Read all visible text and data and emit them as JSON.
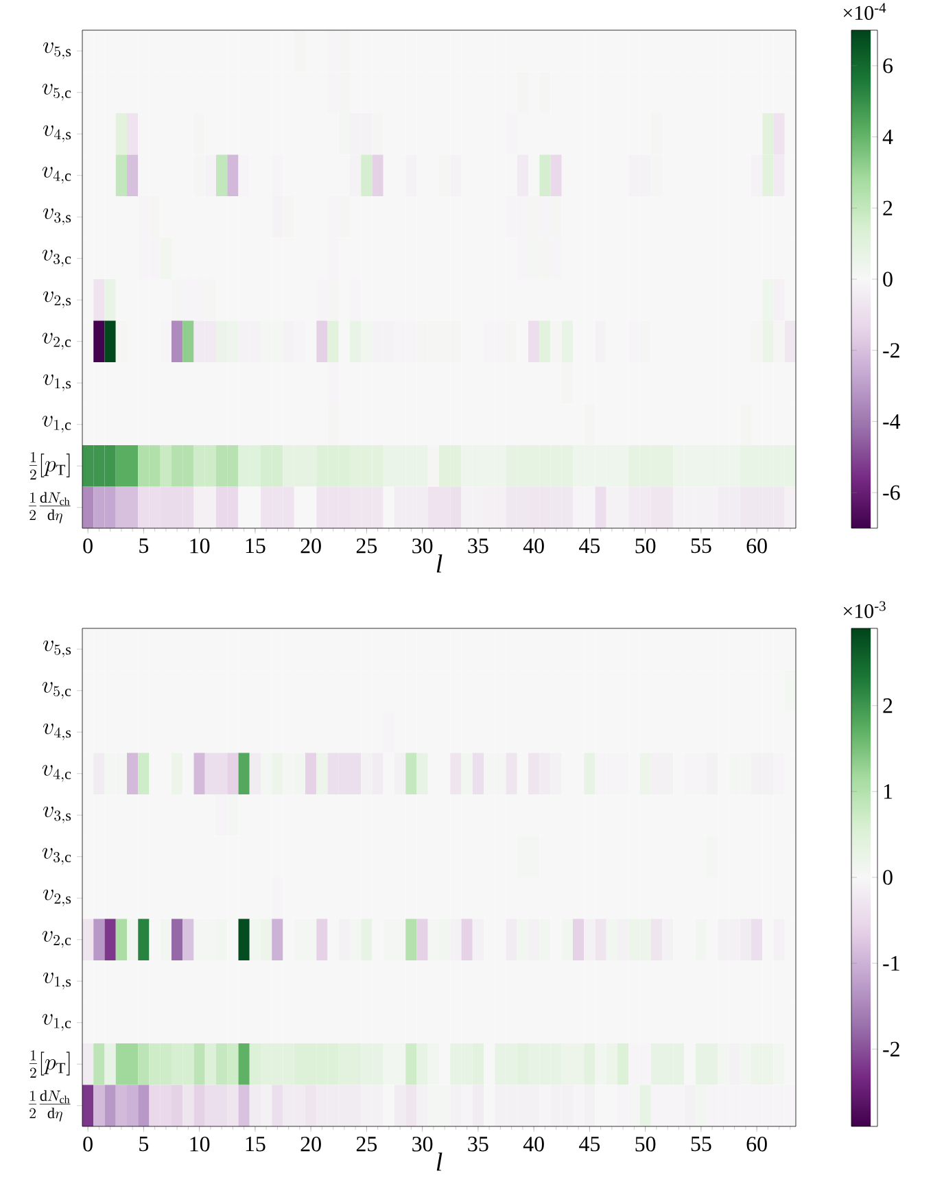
{
  "chart_data": [
    {
      "type": "heatmap",
      "xlabel": "l",
      "clabel": "×10$^{-4}$",
      "clim": [
        -7,
        7
      ],
      "cticks": [
        -6,
        -4,
        -2,
        0,
        2,
        4,
        6
      ],
      "categories": [
        "0",
        null,
        null,
        null,
        null,
        "5",
        null,
        null,
        null,
        null,
        "10",
        null,
        null,
        null,
        null,
        "15",
        null,
        null,
        null,
        null,
        "20",
        null,
        null,
        null,
        null,
        "25",
        null,
        null,
        null,
        null,
        "30",
        null,
        null,
        null,
        null,
        "35",
        null,
        null,
        null,
        null,
        "40",
        null,
        null,
        null,
        null,
        "45",
        null,
        null,
        null,
        null,
        "50",
        null,
        null,
        null,
        null,
        "55",
        null,
        null,
        null,
        null,
        "60",
        null,
        null,
        null
      ],
      "y_categories": [
        "v_{5,\\mathrm{s}}",
        "v_{5,\\mathrm{c}}",
        "v_{4,\\mathrm{s}}",
        "v_{4,\\mathrm{c}}",
        "v_{3,\\mathrm{s}}",
        "v_{3,\\mathrm{c}}",
        "v_{2,\\mathrm{s}}",
        "v_{2,\\mathrm{c}}",
        "v_{1,\\mathrm{s}}",
        "v_{1,\\mathrm{c}}",
        "\\frac{1}{2}[p_\\mathrm{T}]",
        "\\frac{1}{2}\\frac{\\mathrm{d}N_\\mathrm{ch}}{\\mathrm{d}\\eta}"
      ],
      "cells": [
        [
          0,
          0,
          0,
          0,
          0,
          0,
          0,
          0,
          0,
          0,
          0,
          0,
          0,
          0,
          0,
          0,
          0,
          0,
          0,
          0.1,
          0,
          0,
          -0.1,
          0.1,
          0,
          0,
          0,
          0,
          0,
          0,
          0,
          0,
          0,
          0,
          0,
          0,
          0,
          0,
          0,
          0,
          0,
          0,
          0,
          0,
          0,
          0,
          0,
          0,
          0,
          0,
          0,
          0,
          0,
          0,
          0,
          0,
          0,
          0,
          0,
          0,
          0,
          0,
          0,
          0
        ],
        [
          0,
          0,
          0,
          0,
          0,
          0,
          0,
          0,
          0,
          0,
          0,
          0,
          0,
          0,
          0,
          0,
          0,
          0,
          0,
          0,
          0,
          0,
          -0.1,
          0.1,
          0,
          0,
          0,
          0,
          0,
          0,
          0,
          0,
          0,
          0,
          0,
          0,
          0,
          0,
          0,
          0.1,
          0,
          0.1,
          0,
          0,
          0,
          0,
          0,
          0,
          0,
          0,
          0,
          0,
          0,
          0,
          0,
          0,
          0,
          0,
          0,
          0,
          0,
          0,
          0,
          0
        ],
        [
          0,
          0,
          0,
          1.0,
          -0.8,
          0,
          0,
          0,
          0,
          0,
          0.1,
          0,
          0,
          0,
          0,
          0,
          0,
          0,
          0,
          0,
          0,
          0,
          0,
          0.2,
          -0.2,
          -0.2,
          0.1,
          0,
          0,
          0,
          0,
          0,
          0,
          0,
          0,
          0,
          0,
          0,
          -0.1,
          0,
          0,
          0,
          0,
          0,
          0,
          0,
          0,
          0,
          0,
          0,
          0,
          0.1,
          0,
          0,
          0,
          0,
          0,
          0,
          0,
          0,
          0,
          1.0,
          -0.8,
          0
        ],
        [
          0,
          0,
          0,
          2.0,
          -2.0,
          0,
          0,
          0,
          0,
          0,
          0.1,
          -0.2,
          2.0,
          -2.2,
          -0.1,
          0,
          0,
          -0.1,
          0,
          0,
          0,
          0,
          0,
          0,
          -0.2,
          1.5,
          -1.5,
          0,
          0,
          -0.2,
          0,
          0,
          0.1,
          -0.2,
          0,
          0,
          0,
          0,
          0,
          -0.5,
          0,
          1.5,
          -1.2,
          0,
          0,
          0,
          0,
          0,
          0,
          -0.2,
          -0.2,
          0.1,
          0,
          0,
          0,
          0,
          0,
          0,
          0,
          0,
          -0.2,
          1.0,
          -0.5,
          0
        ],
        [
          0,
          0,
          0,
          0,
          0,
          -0.1,
          0.1,
          0,
          0,
          0,
          0,
          0,
          0,
          0,
          0,
          0,
          0,
          -0.2,
          0.1,
          0,
          0,
          0,
          -0.1,
          0.1,
          0,
          0,
          0,
          0,
          0,
          0,
          0,
          0,
          0,
          0,
          0,
          0,
          0,
          0,
          -0.1,
          -0.1,
          0.1,
          -0.1,
          0.1,
          0,
          0,
          0,
          0,
          0,
          0,
          0,
          0,
          0,
          0,
          0,
          0,
          0,
          0,
          0,
          0,
          0,
          0,
          0,
          0,
          0
        ],
        [
          0,
          0,
          0,
          0,
          0,
          -0.1,
          -0.1,
          0.3,
          0,
          0,
          0,
          0,
          0,
          0,
          0,
          0,
          0,
          0,
          0,
          0,
          0,
          0,
          -0.1,
          0,
          0,
          0,
          0,
          0,
          0,
          0,
          0,
          0,
          0,
          0,
          0,
          0,
          0,
          0,
          0,
          -0.1,
          0.2,
          0.1,
          -0.1,
          0,
          0,
          0,
          0,
          0,
          0,
          0,
          0,
          0,
          0,
          0,
          0,
          0,
          0,
          0,
          0,
          0,
          0,
          0,
          0,
          0
        ],
        [
          0,
          -0.8,
          0.7,
          0,
          0,
          0,
          0,
          0,
          0.1,
          -0.1,
          -0.1,
          0.1,
          0,
          0,
          0,
          0,
          0,
          0,
          0,
          0,
          0,
          -0.1,
          0.1,
          0,
          -0.1,
          0,
          0,
          0,
          0,
          0,
          0,
          0,
          0,
          0,
          0,
          0,
          0,
          0,
          0,
          0,
          0,
          0,
          0,
          0,
          0,
          0,
          0,
          0,
          0,
          0,
          0,
          0,
          0,
          0,
          0,
          0,
          0,
          0,
          0,
          0,
          0,
          0.4,
          -0.3,
          0
        ],
        [
          0,
          -6.9,
          6.9,
          0.1,
          0,
          0,
          0,
          -0.1,
          -3.5,
          3.2,
          -0.5,
          -0.5,
          0.5,
          0.4,
          -0.2,
          -0.2,
          0.2,
          0.2,
          -0.2,
          -0.1,
          0,
          -1.5,
          1.0,
          0,
          0.7,
          0.3,
          -0.2,
          -0.2,
          -0.1,
          -0.1,
          0.1,
          0.1,
          0.1,
          0.1,
          0,
          0,
          -0.1,
          -0.1,
          0.1,
          0,
          -1.0,
          1.0,
          0.1,
          0.7,
          0,
          0,
          -0.2,
          0,
          0,
          -0.1,
          0.1,
          0,
          0,
          0,
          0,
          0,
          0,
          0,
          0,
          0,
          0.1,
          0.5,
          0.1,
          -0.6
        ],
        [
          0,
          0,
          0,
          0,
          0,
          0,
          0,
          0,
          0,
          0,
          0,
          0,
          0,
          0,
          0,
          0,
          0,
          0,
          0,
          0,
          0,
          0,
          -0.1,
          0,
          0,
          0,
          0,
          0,
          0,
          0,
          0,
          0,
          0,
          0,
          0,
          0,
          0,
          0,
          0,
          0,
          0,
          0,
          0,
          0.1,
          0,
          0,
          0,
          0,
          0,
          0,
          0,
          0,
          0,
          0,
          0,
          0,
          0,
          0,
          0,
          0,
          0,
          0,
          0,
          0
        ],
        [
          0,
          0,
          0,
          0,
          0,
          0,
          0,
          0,
          0,
          0,
          0,
          0,
          0,
          0,
          0,
          0,
          0,
          0,
          0,
          0,
          0,
          0,
          0.1,
          0,
          0,
          0,
          0,
          0,
          0,
          0,
          0,
          0,
          0,
          0,
          0,
          0,
          0,
          0,
          0,
          0,
          0,
          0,
          0,
          0,
          0,
          0.1,
          0,
          0,
          0,
          0,
          0,
          0,
          0,
          0,
          0,
          0,
          0,
          0,
          0,
          0.1,
          0,
          0,
          0,
          0
        ],
        [
          4.8,
          4.8,
          4.8,
          4.2,
          4.2,
          2.5,
          2.5,
          1.8,
          2.4,
          2.4,
          1.7,
          1.7,
          2.3,
          2.3,
          1.1,
          1.1,
          1.5,
          1.5,
          0.8,
          0.8,
          0.8,
          1.2,
          1.2,
          1.2,
          1.0,
          1.0,
          1.0,
          0.6,
          0.6,
          0.6,
          0.6,
          0.1,
          1.0,
          1.0,
          0.4,
          0.4,
          0.4,
          0.4,
          0.8,
          0.8,
          0.8,
          0.8,
          0.8,
          0.8,
          0.4,
          0.4,
          0.4,
          0.4,
          0.4,
          0.8,
          0.8,
          0.8,
          0.8,
          0.4,
          0.4,
          0.4,
          0.4,
          0.4,
          0.4,
          0.7,
          0.7,
          0.7,
          0.7,
          0.7
        ],
        [
          -3.5,
          -2.7,
          -2.7,
          -2.0,
          -2.0,
          -1.0,
          -1.0,
          -1.1,
          -1.1,
          -1.1,
          -0.3,
          -0.3,
          -1.2,
          -1.2,
          0.0,
          0.0,
          -0.8,
          -0.8,
          -0.8,
          0.0,
          0.0,
          -0.8,
          -0.8,
          -0.8,
          -0.7,
          -0.7,
          -0.7,
          0.0,
          -0.4,
          -0.4,
          -0.4,
          -0.8,
          -0.8,
          -0.9,
          -0.2,
          -0.2,
          -0.3,
          -0.3,
          -0.6,
          -0.6,
          -0.7,
          -0.7,
          -0.6,
          -0.6,
          -0.1,
          -0.1,
          -1.0,
          -0.2,
          -0.2,
          -0.5,
          -0.5,
          -0.7,
          -0.7,
          -0.2,
          -0.2,
          -0.2,
          -0.2,
          -0.4,
          -0.4,
          -0.6,
          -0.6,
          -0.6,
          -0.6,
          -0.3
        ]
      ]
    },
    {
      "type": "heatmap",
      "xlabel": "l",
      "clabel": "×10$^{-3}$",
      "clim": [
        -2.9,
        2.9
      ],
      "cticks": [
        -2,
        -1,
        0,
        1,
        2
      ],
      "categories": [
        "0",
        null,
        null,
        null,
        null,
        "5",
        null,
        null,
        null,
        null,
        "10",
        null,
        null,
        null,
        null,
        "15",
        null,
        null,
        null,
        null,
        "20",
        null,
        null,
        null,
        null,
        "25",
        null,
        null,
        null,
        null,
        "30",
        null,
        null,
        null,
        null,
        "35",
        null,
        null,
        null,
        null,
        "40",
        null,
        null,
        null,
        null,
        "45",
        null,
        null,
        null,
        null,
        "50",
        null,
        null,
        null,
        null,
        "55",
        null,
        null,
        null,
        null,
        "60",
        null,
        null,
        null
      ],
      "y_categories": [
        "v_{5,\\mathrm{s}}",
        "v_{5,\\mathrm{c}}",
        "v_{4,\\mathrm{s}}",
        "v_{4,\\mathrm{c}}",
        "v_{3,\\mathrm{s}}",
        "v_{3,\\mathrm{c}}",
        "v_{2,\\mathrm{s}}",
        "v_{2,\\mathrm{c}}",
        "v_{1,\\mathrm{s}}",
        "v_{1,\\mathrm{c}}",
        "\\frac{1}{2}[p_\\mathrm{T}]",
        "\\frac{1}{2}\\frac{\\mathrm{d}N_\\mathrm{ch}}{\\mathrm{d}\\eta}"
      ],
      "cells": [
        [
          0,
          0,
          0,
          0,
          0,
          0,
          0,
          0,
          0,
          0,
          0,
          0,
          0,
          0,
          0,
          0,
          0,
          0,
          0,
          0,
          0,
          0,
          0,
          0,
          0,
          0,
          0,
          0,
          0,
          0,
          0,
          0,
          0,
          0,
          0,
          0,
          0,
          0,
          0,
          0,
          0,
          0,
          0,
          0,
          0,
          0,
          0,
          0,
          0,
          0,
          0,
          0,
          0,
          0,
          0,
          0,
          0,
          0,
          0,
          0,
          0,
          0,
          0,
          0
        ],
        [
          0,
          0,
          0,
          0,
          0,
          0,
          0,
          0,
          0,
          0,
          0,
          0,
          0,
          0,
          0,
          0,
          0,
          0,
          0,
          0,
          0,
          0,
          0,
          0,
          0,
          0,
          0,
          0,
          0,
          0,
          0,
          0,
          0,
          0,
          0,
          0,
          0,
          0,
          0,
          0,
          0,
          0,
          0,
          0,
          0,
          0,
          0,
          0,
          0,
          0,
          0,
          0,
          0,
          0,
          0,
          0,
          0,
          0,
          0,
          0,
          0,
          0,
          0,
          0.05
        ],
        [
          0,
          0,
          0,
          0,
          0,
          0,
          0,
          0,
          0,
          0,
          0,
          0,
          0,
          0,
          0,
          0,
          0,
          0,
          0,
          0,
          0,
          0,
          0,
          0,
          0,
          0,
          0,
          -0.05,
          0,
          0,
          0,
          0,
          0,
          0,
          0,
          0,
          0,
          0,
          0,
          0,
          0,
          0,
          0,
          0,
          0,
          0,
          0,
          0,
          0,
          0,
          0,
          0,
          0,
          0,
          0,
          0,
          0,
          0,
          0,
          0,
          0,
          0,
          0,
          0
        ],
        [
          0,
          -0.2,
          0.05,
          0.05,
          -0.9,
          0.7,
          0,
          0,
          0.2,
          0,
          -0.9,
          -0.4,
          -0.4,
          -0.6,
          1.8,
          -0.2,
          0.05,
          0.2,
          0.05,
          0.1,
          -0.6,
          0.2,
          -0.4,
          -0.4,
          -0.4,
          -0.1,
          -0.2,
          0,
          -0.1,
          0.8,
          0.3,
          0,
          0,
          -0.3,
          0.1,
          -0.4,
          0.05,
          0.05,
          -0.3,
          0,
          -0.3,
          -0.2,
          -0.1,
          0,
          0,
          0.3,
          -0.05,
          -0.05,
          -0.05,
          0,
          0.2,
          -0.1,
          -0.1,
          0,
          -0.05,
          -0.05,
          -0.1,
          0,
          0.05,
          0.05,
          -0.1,
          -0.1,
          -0.05,
          0
        ],
        [
          0,
          0,
          0,
          0,
          0,
          0,
          0,
          0,
          0,
          0,
          0,
          0,
          -0.05,
          0.05,
          0,
          0,
          0,
          0,
          0,
          0,
          0,
          0,
          0,
          0,
          0,
          0,
          0,
          0,
          0,
          0,
          0,
          0,
          0,
          0,
          0,
          0,
          0,
          0,
          0,
          0,
          0,
          0,
          0,
          0,
          0,
          0,
          0,
          0,
          0,
          0,
          0,
          0,
          0,
          0,
          0,
          0,
          0,
          0,
          0,
          0,
          0,
          0,
          0,
          0
        ],
        [
          0,
          0,
          0,
          0,
          0,
          0,
          0,
          0,
          0,
          0,
          0,
          0,
          0,
          0,
          0,
          0,
          0,
          0,
          0,
          0,
          0,
          0,
          0,
          0,
          0,
          0,
          0,
          0,
          0,
          0,
          0,
          0,
          0,
          0,
          0,
          0,
          0,
          0,
          0,
          0.05,
          0.05,
          0,
          0,
          0,
          0,
          0,
          0,
          0,
          0,
          0,
          0,
          0,
          0,
          0,
          0,
          0,
          0.05,
          0,
          0,
          0,
          0,
          0,
          0,
          0
        ],
        [
          0,
          0,
          0,
          0,
          0,
          0,
          0,
          0,
          0,
          0,
          0,
          0,
          0,
          0,
          0,
          0,
          0,
          -0.05,
          0,
          0,
          0,
          0,
          0,
          0,
          0,
          0,
          0,
          0,
          0,
          0,
          0,
          0,
          0,
          0,
          0,
          0,
          0,
          0,
          0,
          0,
          0,
          0,
          0,
          0,
          0,
          0,
          0,
          0,
          0,
          0,
          0,
          0,
          0,
          0,
          0,
          0,
          0,
          0,
          0,
          0,
          0,
          0,
          0,
          0
        ],
        [
          -0.3,
          -1.3,
          -2.2,
          1.1,
          0.1,
          2.2,
          0,
          0.1,
          -1.8,
          -0.8,
          0.05,
          0.05,
          0.1,
          0,
          2.8,
          0.1,
          0.2,
          -1.0,
          0,
          0.05,
          0.05,
          -0.6,
          0,
          -0.1,
          0.05,
          0.3,
          0,
          0.05,
          0.05,
          1.0,
          -0.6,
          0.05,
          0.1,
          -0.1,
          -0.6,
          -0.1,
          0,
          0,
          -0.2,
          0.1,
          -0.1,
          0.1,
          0,
          0.1,
          -0.6,
          -0.1,
          -0.3,
          0.1,
          -0.1,
          0.2,
          0.2,
          -0.3,
          -0.1,
          0,
          0,
          0.1,
          0,
          -0.1,
          -0.1,
          -0.2,
          -0.4,
          0,
          -0.1,
          0
        ],
        [
          0,
          0,
          0,
          0,
          0,
          0,
          0,
          0,
          0,
          0,
          0,
          0,
          0,
          0,
          0,
          0,
          0,
          0,
          0,
          0,
          0,
          0,
          0,
          0,
          0,
          0,
          0,
          0,
          0,
          0,
          0,
          0,
          0,
          0,
          0,
          0,
          0,
          0,
          0,
          0,
          0,
          0,
          0,
          0,
          0,
          0,
          0,
          0,
          0,
          0,
          0,
          0,
          0,
          0,
          0,
          0,
          0,
          0,
          0,
          0,
          0,
          0,
          0,
          0
        ],
        [
          0,
          0,
          0,
          0,
          0,
          0,
          0,
          0,
          0,
          0,
          0,
          0,
          0,
          0,
          0,
          0,
          0,
          0,
          0,
          0,
          0,
          0,
          0,
          0,
          0,
          0,
          0,
          0,
          0,
          0,
          0,
          0,
          0,
          0,
          0,
          0,
          0,
          0,
          0,
          0,
          0,
          0,
          0,
          0,
          0,
          0,
          0,
          0,
          0,
          0,
          0,
          0,
          0,
          0,
          0,
          0,
          0,
          0,
          0,
          0,
          0,
          0,
          0,
          0
        ],
        [
          -0.2,
          0.9,
          0.3,
          1.2,
          1.2,
          0.9,
          0.7,
          0.7,
          0.6,
          0.6,
          0.9,
          0.5,
          0.8,
          0.7,
          1.7,
          0.5,
          0.4,
          0.4,
          0.4,
          0.5,
          0.5,
          0.5,
          0.5,
          0.4,
          0.4,
          0.3,
          0.3,
          0.1,
          0.1,
          0.7,
          0.3,
          0.1,
          0.0,
          0.3,
          0.3,
          0.4,
          0.0,
          0.3,
          0.3,
          0.4,
          0.3,
          0.3,
          0.3,
          0.2,
          0.2,
          0.4,
          0.1,
          0.2,
          0.5,
          -0.05,
          -0.05,
          0.3,
          0.3,
          0.3,
          0.0,
          0.3,
          0.3,
          0.1,
          -0.1,
          0.1,
          0.2,
          0.2,
          0.1,
          0.0
        ],
        [
          -2.2,
          -0.9,
          -1.3,
          -0.9,
          -1.0,
          -1.3,
          -0.5,
          -0.5,
          -0.6,
          -0.3,
          -0.6,
          -0.4,
          -0.4,
          -0.3,
          -0.8,
          -0.2,
          -0.1,
          -0.4,
          -0.2,
          -0.2,
          -0.3,
          -0.2,
          -0.2,
          -0.2,
          -0.2,
          -0.1,
          -0.1,
          0.0,
          -0.2,
          -0.3,
          -0.1,
          0.05,
          0.05,
          -0.1,
          -0.05,
          -0.2,
          0.0,
          -0.1,
          -0.1,
          -0.1,
          -0.1,
          -0.05,
          -0.1,
          -0.1,
          -0.05,
          -0.1,
          0.0,
          0.0,
          -0.05,
          0.05,
          0.3,
          -0.05,
          -0.05,
          -0.05,
          -0.1,
          0.1,
          -0.05,
          -0.05,
          -0.05,
          -0.05,
          -0.05,
          -0.05,
          -0.05,
          -0.05
        ]
      ]
    }
  ]
}
